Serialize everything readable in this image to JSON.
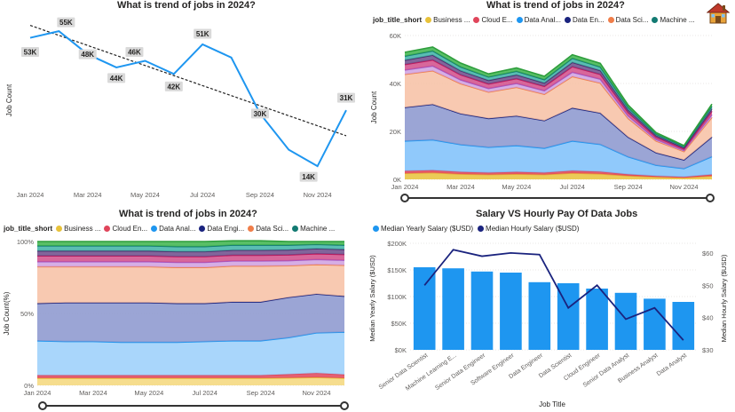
{
  "panels": {
    "p1_title": "What is trend of jobs in 2024?",
    "p2_title": "What is trend of jobs in 2024?",
    "p3_title": "What is trend of jobs in 2024?",
    "p4_title": "Salary VS Hourly Pay Of Data Jobs"
  },
  "legend_cat": {
    "title": "job_title_short",
    "items": [
      {
        "label": "Business ...",
        "color": "#E8C23A"
      },
      {
        "label": "Cloud E...",
        "color": "#E0455B"
      },
      {
        "label": "Data Anal...",
        "color": "#1E96F0"
      },
      {
        "label": "Data En...",
        "color": "#1A237E"
      },
      {
        "label": "Data Sci...",
        "color": "#F07E4A"
      },
      {
        "label": "Machine ...",
        "color": "#127A72"
      }
    ]
  },
  "legend_cat3": {
    "title": "job_title_short",
    "items": [
      {
        "label": "Business ...",
        "color": "#E8C23A"
      },
      {
        "label": "Cloud En...",
        "color": "#E0455B"
      },
      {
        "label": "Data Anal...",
        "color": "#1E96F0"
      },
      {
        "label": "Data Engi...",
        "color": "#1A237E"
      },
      {
        "label": "Data Sci...",
        "color": "#F07E4A"
      },
      {
        "label": "Machine ...",
        "color": "#127A72"
      }
    ]
  },
  "legend_salary": {
    "items": [
      {
        "label": "Median Yearly Salary ($USD)",
        "color": "#1E96F0"
      },
      {
        "label": "Median Hourly Salary ($USD)",
        "color": "#1A237E"
      }
    ]
  },
  "chart_data": [
    {
      "id": "line",
      "type": "line",
      "title": "What is trend of jobs in 2024?",
      "ylabel": "Job Count",
      "xlabel": "",
      "x_ticks": [
        "Jan 2024",
        "Mar 2024",
        "May 2024",
        "Jul 2024",
        "Sep 2024",
        "Nov 2024"
      ],
      "x": [
        "Jan 2024",
        "Feb 2024",
        "Mar 2024",
        "Apr 2024",
        "May 2024",
        "Jun 2024",
        "Jul 2024",
        "Aug 2024",
        "Sep 2024",
        "Oct 2024",
        "Nov 2024",
        "Dec 2024"
      ],
      "values": [
        53,
        55,
        48,
        44,
        46,
        42,
        51,
        47,
        30,
        19,
        14,
        31
      ],
      "labels": [
        "53K",
        "55K",
        "48K",
        "44K",
        "46K",
        "42K",
        "51K",
        "",
        "30K",
        "",
        "14K",
        "31K"
      ],
      "trendline": true,
      "color": "#1E96F0"
    },
    {
      "id": "area",
      "type": "area",
      "stacked": true,
      "title": "What is trend of jobs in 2024?",
      "ylabel": "Job Count",
      "y_ticks": [
        "0K",
        "20K",
        "40K",
        "60K"
      ],
      "ylim": [
        0,
        60
      ],
      "x_ticks": [
        "Jan 2024",
        "Mar 2024",
        "May 2024",
        "Jul 2024",
        "Sep 2024",
        "Nov 2024"
      ],
      "x": [
        "Jan 2024",
        "Feb 2024",
        "Mar 2024",
        "Apr 2024",
        "May 2024",
        "Jun 2024",
        "Jul 2024",
        "Aug 2024",
        "Sep 2024",
        "Oct 2024",
        "Nov 2024",
        "Dec 2024"
      ],
      "series": [
        {
          "name": "Business Analyst",
          "color": "#E8C23A",
          "values": [
            2.5,
            2.8,
            2.2,
            2.0,
            2.2,
            2.0,
            2.6,
            2.3,
            1.5,
            1.0,
            0.7,
            1.4
          ]
        },
        {
          "name": "Cloud Engineer",
          "color": "#E0455B",
          "values": [
            1.0,
            1.0,
            0.9,
            0.8,
            0.9,
            0.8,
            1.0,
            0.9,
            0.6,
            0.4,
            0.3,
            0.6
          ]
        },
        {
          "name": "Data Analyst",
          "color": "#7CC0FA",
          "values": [
            12.5,
            12.7,
            11.4,
            10.6,
            11.0,
            10.2,
            12.4,
            11.4,
            7.3,
            4.5,
            3.5,
            7.5
          ]
        },
        {
          "name": "Data Engineer",
          "color": "#8A95CE",
          "values": [
            14.0,
            14.8,
            12.9,
            12.0,
            12.4,
            11.5,
            13.8,
            13.1,
            8.2,
            5.2,
            3.6,
            8.2
          ]
        },
        {
          "name": "Data Scientist",
          "color": "#F7C0A3",
          "values": [
            13.8,
            14.0,
            12.5,
            11.0,
            11.9,
            11.0,
            13.1,
            12.5,
            7.8,
            4.9,
            3.5,
            8.2
          ]
        },
        {
          "name": "Machine Learning Engineer",
          "color": "#CFA0E0",
          "values": [
            1.8,
            2.0,
            1.6,
            1.5,
            1.6,
            1.5,
            1.8,
            1.6,
            1.1,
            0.7,
            0.5,
            1.1
          ]
        },
        {
          "name": "Senior Data Analyst",
          "color": "#D14C8A",
          "values": [
            2.3,
            2.5,
            2.1,
            1.9,
            2.0,
            1.8,
            2.3,
            2.0,
            1.4,
            0.9,
            0.6,
            1.4
          ]
        },
        {
          "name": "Senior Data Engineer",
          "color": "#6B4A8A",
          "values": [
            1.8,
            2.0,
            1.7,
            1.5,
            1.6,
            1.4,
            1.8,
            1.6,
            1.1,
            0.7,
            0.5,
            1.1
          ]
        },
        {
          "name": "Senior Data Scientist",
          "color": "#3DB2A6",
          "values": [
            1.7,
            1.8,
            1.6,
            1.4,
            1.5,
            1.4,
            1.7,
            1.5,
            1.0,
            0.6,
            0.5,
            1.0
          ]
        },
        {
          "name": "Software Engineer",
          "color": "#3CB44B",
          "values": [
            1.6,
            1.6,
            1.6,
            1.3,
            1.4,
            1.4,
            1.5,
            1.5,
            1.0,
            0.6,
            0.4,
            0.9
          ]
        }
      ]
    },
    {
      "id": "pct",
      "type": "area",
      "stacked": "percent",
      "title": "What is trend of jobs in 2024?",
      "ylabel": "Job Count(%)",
      "y_ticks": [
        "0%",
        "50%",
        "100%"
      ],
      "ylim": [
        0,
        100
      ],
      "x_ticks": [
        "Jan 2024",
        "Mar 2024",
        "May 2024",
        "Jul 2024",
        "Sep 2024",
        "Nov 2024"
      ],
      "x": [
        "Jan 2024",
        "Feb 2024",
        "Mar 2024",
        "Apr 2024",
        "May 2024",
        "Jun 2024",
        "Jul 2024",
        "Aug 2024",
        "Sep 2024",
        "Oct 2024",
        "Nov 2024",
        "Dec 2024"
      ],
      "series": [
        {
          "name": "Business Analyst",
          "color": "#F5D77A",
          "values": [
            5.0,
            5.0,
            5.0,
            5.0,
            5.0,
            5.0,
            5.0,
            5.0,
            5.0,
            5.2,
            5.5,
            5.0
          ]
        },
        {
          "name": "Cloud Engineer",
          "color": "#E0455B",
          "values": [
            2.0,
            2.0,
            2.0,
            2.0,
            2.0,
            2.0,
            2.0,
            2.0,
            2.0,
            2.5,
            3.0,
            2.5
          ]
        },
        {
          "name": "Data Analyst",
          "color": "#9ACFFA",
          "values": [
            24.0,
            23.5,
            23.5,
            23.0,
            23.0,
            23.0,
            23.5,
            24.0,
            24.0,
            25.5,
            28.0,
            29.5
          ]
        },
        {
          "name": "Data Engineer",
          "color": "#8A95CE",
          "values": [
            26.0,
            27.0,
            27.0,
            27.5,
            27.5,
            27.0,
            26.5,
            27.0,
            27.0,
            28.0,
            27.0,
            25.0
          ]
        },
        {
          "name": "Data Scientist",
          "color": "#F7C0A3",
          "values": [
            25.5,
            25.0,
            25.0,
            25.0,
            25.0,
            25.0,
            25.0,
            25.0,
            25.0,
            22.0,
            20.5,
            21.5
          ]
        },
        {
          "name": "Machine Learning Engineer",
          "color": "#CFA0E0",
          "values": [
            3.5,
            3.5,
            3.5,
            3.5,
            3.5,
            3.5,
            3.5,
            3.5,
            3.5,
            3.5,
            3.5,
            3.5
          ]
        },
        {
          "name": "Senior Data Analyst",
          "color": "#D14C8A",
          "values": [
            4.0,
            4.0,
            4.0,
            4.0,
            4.0,
            4.0,
            4.0,
            4.0,
            4.0,
            4.0,
            4.0,
            4.0
          ]
        },
        {
          "name": "Senior Data Engineer",
          "color": "#6B4A8A",
          "values": [
            3.5,
            3.5,
            3.5,
            3.5,
            3.5,
            3.5,
            3.5,
            3.5,
            3.5,
            3.5,
            3.5,
            3.5
          ]
        },
        {
          "name": "Senior Data Scientist",
          "color": "#3DB2A6",
          "values": [
            3.5,
            3.5,
            3.5,
            3.5,
            3.5,
            3.5,
            3.5,
            3.5,
            3.5,
            3.3,
            3.0,
            3.0
          ]
        },
        {
          "name": "Software Engineer",
          "color": "#3CB44B",
          "values": [
            3.0,
            3.0,
            3.0,
            3.0,
            3.0,
            3.5,
            3.5,
            3.0,
            3.0,
            2.5,
            2.0,
            2.5
          ]
        }
      ]
    },
    {
      "id": "salary",
      "type": "bar",
      "title": "Salary VS Hourly Pay Of Data Jobs",
      "xlabel": "Job Title",
      "ylabel": "Median Yearly Salary ($USD)",
      "y2label": "Median Hourly Salary ($USD)",
      "y_ticks": [
        "$0K",
        "$50K",
        "$100K",
        "$150K",
        "$200K"
      ],
      "ylim": [
        0,
        200000
      ],
      "y2_ticks": [
        "$30",
        "$40",
        "$50",
        "$60"
      ],
      "y2lim": [
        30,
        63
      ],
      "categories": [
        "Senior Data Scientist",
        "Machine Learning E...",
        "Senior Data Engineer",
        "Software Engineer",
        "Data Engineer",
        "Data Scientist",
        "Cloud Engineer",
        "Senior Data Analyst",
        "Business Analyst",
        "Data Analyst"
      ],
      "series": [
        {
          "name": "Median Yearly Salary ($USD)",
          "type": "bar",
          "color": "#1E96F0",
          "values": [
            155000,
            153000,
            147000,
            145000,
            127000,
            125000,
            115000,
            107000,
            96000,
            90000
          ]
        },
        {
          "name": "Median Hourly Salary ($USD)",
          "type": "line",
          "color": "#1A237E",
          "values": [
            50,
            61,
            59,
            60,
            59.5,
            43,
            50,
            39.5,
            43,
            33
          ]
        }
      ]
    }
  ]
}
